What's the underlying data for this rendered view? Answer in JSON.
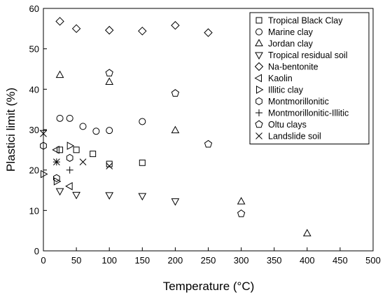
{
  "chart_data": {
    "type": "scatter",
    "title": "",
    "xlabel": "Temperature (°C)",
    "ylabel": "Plastici limit (%)",
    "xlim": [
      0,
      500
    ],
    "ylim": [
      0,
      60
    ],
    "xticks": [
      0,
      50,
      100,
      150,
      200,
      250,
      300,
      350,
      400,
      450,
      500
    ],
    "yticks": [
      0,
      10,
      20,
      30,
      40,
      50,
      60
    ],
    "grid": false,
    "legend_position": "top-right",
    "series": [
      {
        "name": "Tropical Black Clay",
        "marker": "square",
        "points": [
          [
            25,
            25
          ],
          [
            50,
            25
          ],
          [
            75,
            24
          ],
          [
            100,
            21.5
          ],
          [
            150,
            21.8
          ]
        ]
      },
      {
        "name": "Marine clay",
        "marker": "circle",
        "points": [
          [
            25,
            32.8
          ],
          [
            40,
            32.8
          ],
          [
            60,
            30.8
          ],
          [
            80,
            29.6
          ],
          [
            100,
            29.8
          ],
          [
            150,
            32
          ]
        ]
      },
      {
        "name": "Jordan clay",
        "marker": "triangle-up",
        "points": [
          [
            25,
            43.5
          ],
          [
            100,
            41.8
          ],
          [
            200,
            29.8
          ],
          [
            300,
            12.2
          ],
          [
            400,
            4.3
          ]
        ]
      },
      {
        "name": "Tropical residual soil",
        "marker": "triangle-down",
        "points": [
          [
            25,
            14.8
          ],
          [
            50,
            13.9
          ],
          [
            100,
            13.8
          ],
          [
            150,
            13.6
          ],
          [
            200,
            12.3
          ]
        ]
      },
      {
        "name": "Na-bentonite",
        "marker": "diamond",
        "points": [
          [
            25,
            56.8
          ],
          [
            50,
            55
          ],
          [
            100,
            54.6
          ],
          [
            150,
            54.4
          ],
          [
            200,
            55.8
          ],
          [
            250,
            54
          ]
        ]
      },
      {
        "name": "Kaolin",
        "marker": "triangle-left",
        "points": [
          [
            20,
            25
          ],
          [
            40,
            16
          ]
        ]
      },
      {
        "name": "Illitic clay",
        "marker": "triangle-right",
        "points": [
          [
            0,
            19
          ],
          [
            20,
            17.2
          ],
          [
            40,
            26
          ]
        ]
      },
      {
        "name": "Montmorillonitic",
        "marker": "hexagon",
        "points": [
          [
            0,
            26
          ],
          [
            20,
            18
          ],
          [
            40,
            23
          ]
        ]
      },
      {
        "name": "Montmorillonitic-Illitic",
        "marker": "plus",
        "points": [
          [
            0,
            29.8
          ],
          [
            20,
            22
          ],
          [
            40,
            20
          ]
        ]
      },
      {
        "name": "Oltu clays",
        "marker": "pentagon",
        "points": [
          [
            100,
            44
          ],
          [
            200,
            39
          ],
          [
            250,
            26.4
          ],
          [
            300,
            9.2
          ]
        ]
      },
      {
        "name": "Landslide soil",
        "marker": "x",
        "points": [
          [
            0,
            29
          ],
          [
            20,
            22
          ],
          [
            60,
            22
          ],
          [
            100,
            21
          ]
        ]
      }
    ]
  }
}
